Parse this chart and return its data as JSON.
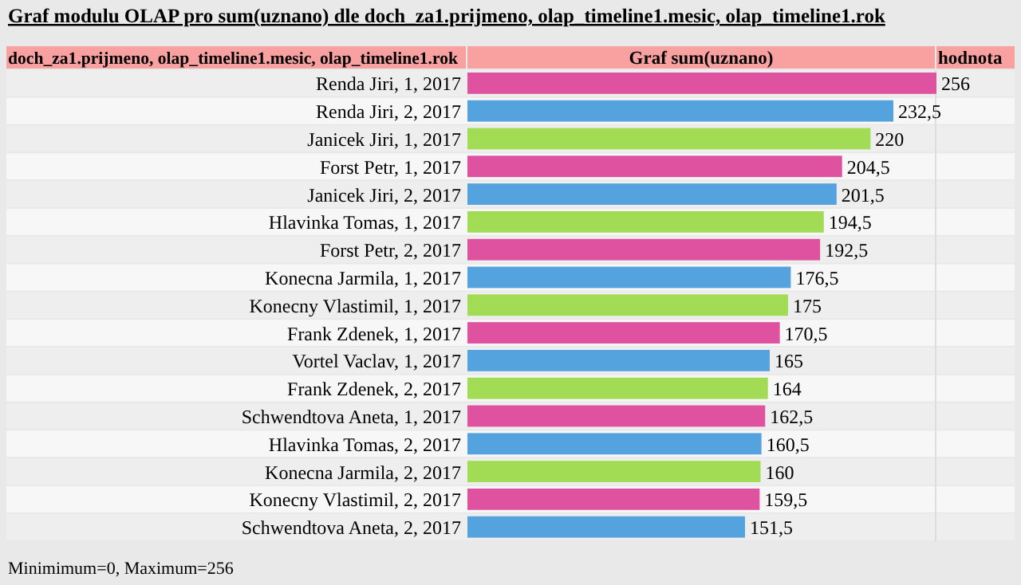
{
  "chart_data": {
    "type": "bar",
    "orientation": "horizontal",
    "title": "Graf modulu OLAP pro sum(uznano) dle doch_za1.prijmeno, olap_timeline1.mesic, olap_timeline1.rok",
    "ylabel": "doch_za1.prijmeno, olap_timeline1.mesic, olap_timeline1.rok",
    "xlabel": "Graf sum(uznano)",
    "annotations": [
      "hodnota",
      "Minimimum=0, Maximum=256"
    ],
    "categories": [
      "Renda Jiri, 1, 2017",
      "Renda Jiri, 2, 2017",
      "Janicek Jiri, 1, 2017",
      "Forst Petr, 1, 2017",
      "Janicek Jiri, 2, 2017",
      "Hlavinka Tomas, 1, 2017",
      "Forst Petr, 2, 2017",
      "Konecna Jarmila, 1, 2017",
      "Konecny Vlastimil, 1, 2017",
      "Frank Zdenek, 1, 2017",
      "Vortel Vaclav, 1, 2017",
      "Frank Zdenek, 2, 2017",
      "Schwendtova Aneta, 1, 2017",
      "Hlavinka Tomas, 2, 2017",
      "Konecna Jarmila, 2, 2017",
      "Konecny Vlastimil, 2, 2017",
      "Schwendtova Aneta, 2, 2017"
    ],
    "values": [
      256,
      232.5,
      220,
      204.5,
      201.5,
      194.5,
      192.5,
      176.5,
      175,
      170.5,
      165,
      164,
      162.5,
      160.5,
      160,
      159.5,
      151.5
    ],
    "value_labels": [
      "256",
      "232,5",
      "220",
      "204,5",
      "201,5",
      "194,5",
      "192,5",
      "176,5",
      "175",
      "170,5",
      "165",
      "164",
      "162,5",
      "160,5",
      "160",
      "159,5",
      "151,5"
    ],
    "colors": [
      "#de52a0",
      "#55a3de",
      "#a2dc55",
      "#de52a0",
      "#55a3de",
      "#a2dc55",
      "#de52a0",
      "#55a3de",
      "#a2dc55",
      "#de52a0",
      "#55a3de",
      "#a2dc55",
      "#de52a0",
      "#55a3de",
      "#a2dc55",
      "#de52a0",
      "#55a3de"
    ],
    "xlim": [
      0,
      256
    ]
  }
}
